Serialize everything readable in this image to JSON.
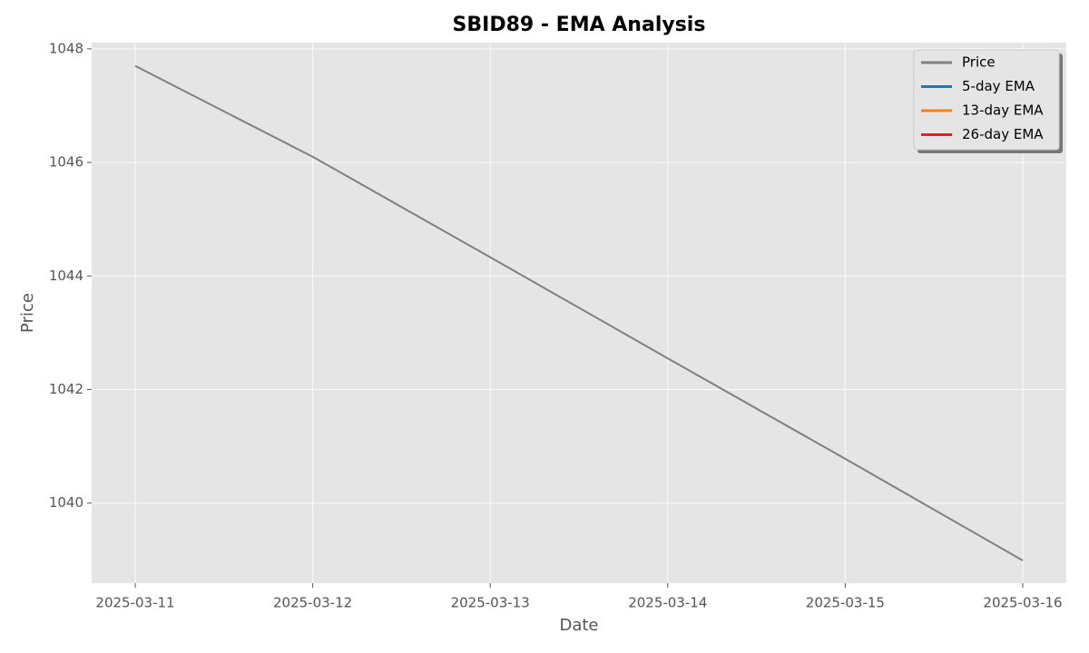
{
  "chart_data": {
    "type": "line",
    "title": "SBID89 - EMA Analysis",
    "x_label": "Date",
    "y_label": "Price",
    "categories": [
      "2025-03-11",
      "2025-03-12",
      "2025-03-13",
      "2025-03-14",
      "2025-03-15",
      "2025-03-16"
    ],
    "series": [
      {
        "name": "Price",
        "color": "#808080",
        "values": [
          1047.7,
          1046.1,
          1044.33,
          1042.55,
          1040.78,
          1038.99
        ]
      },
      {
        "name": "5-day EMA",
        "color": "#1f77b4",
        "values": [
          null,
          null,
          null,
          null,
          null,
          null
        ]
      },
      {
        "name": "13-day EMA",
        "color": "#ff7f0e",
        "values": [
          null,
          null,
          null,
          null,
          null,
          null
        ]
      },
      {
        "name": "26-day EMA",
        "color": "#d62728",
        "values": [
          null,
          null,
          null,
          null,
          null,
          null
        ]
      }
    ],
    "ylim": [
      1038.59,
      1048.11
    ],
    "yticks": [
      1040,
      1042,
      1044,
      1046,
      1048
    ],
    "grid": true,
    "legend": "upper right"
  }
}
